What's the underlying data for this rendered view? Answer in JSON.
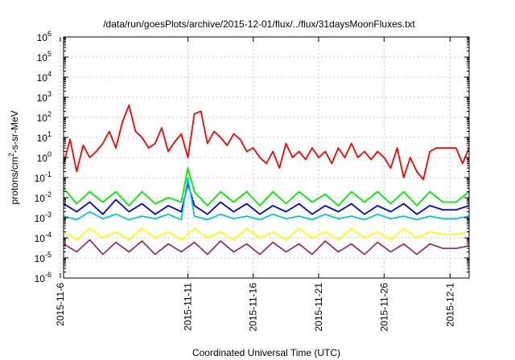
{
  "chart_data": {
    "type": "line",
    "title": "/data/run/goesPlots/archive/2015-12-01/flux/../flux/31daysMoonFluxes.txt",
    "xlabel": "Coordinated Universal Time (UTC)",
    "ylabel": "protons/cm2-s-sr-MeV",
    "y_scale": "log",
    "ylim": [
      1e-06,
      1000000.0
    ],
    "xlim": [
      "2015-11-01T12:00",
      "2015-12-02T12:00"
    ],
    "grid": true,
    "y_ticks": [
      {
        "value": 1e-06,
        "base": "10",
        "exp": "-6"
      },
      {
        "value": 1e-05,
        "base": "10",
        "exp": "-5"
      },
      {
        "value": 0.0001,
        "base": "10",
        "exp": "-4"
      },
      {
        "value": 0.001,
        "base": "10",
        "exp": "-3"
      },
      {
        "value": 0.01,
        "base": "10",
        "exp": "-2"
      },
      {
        "value": 0.1,
        "base": "10",
        "exp": "-1"
      },
      {
        "value": 1,
        "base": "10",
        "exp": "0"
      },
      {
        "value": 10,
        "base": "10",
        "exp": "1"
      },
      {
        "value": 100,
        "base": "10",
        "exp": "2"
      },
      {
        "value": 1000,
        "base": "10",
        "exp": "3"
      },
      {
        "value": 10000,
        "base": "10",
        "exp": "4"
      },
      {
        "value": 100000,
        "base": "10",
        "exp": "5"
      },
      {
        "value": 1000000,
        "base": "10",
        "exp": "6"
      }
    ],
    "x_ticks": [
      "2015-11-6",
      "2015-11-11",
      "2015-11-16",
      "2015-11-21",
      "2015-11-26",
      "2015-12-1"
    ],
    "series": [
      {
        "color": "#ff0000",
        "x": [
          "2015-11-01T12:00",
          "2015-11-02T00:00",
          "2015-11-02T12:00",
          "2015-11-03T00:00",
          "2015-11-03T12:00",
          "2015-11-04T00:00",
          "2015-11-04T12:00",
          "2015-11-05T00:00",
          "2015-11-05T12:00",
          "2015-11-06T00:00",
          "2015-11-06T12:00",
          "2015-11-07T00:00",
          "2015-11-07T12:00",
          "2015-11-08T00:00",
          "2015-11-08T12:00",
          "2015-11-09T00:00",
          "2015-11-09T12:00",
          "2015-11-10T00:00",
          "2015-11-10T12:00",
          "2015-11-11T00:00",
          "2015-11-11T12:00",
          "2015-11-12T00:00",
          "2015-11-12T12:00",
          "2015-11-13T00:00",
          "2015-11-13T12:00",
          "2015-11-14T00:00",
          "2015-11-14T12:00",
          "2015-11-15T00:00",
          "2015-11-15T12:00",
          "2015-11-16T00:00",
          "2015-11-16T12:00",
          "2015-11-17T00:00",
          "2015-11-17T12:00",
          "2015-11-18T00:00",
          "2015-11-18T12:00",
          "2015-11-19T00:00",
          "2015-11-19T12:00",
          "2015-11-20T00:00",
          "2015-11-20T12:00",
          "2015-11-21T00:00",
          "2015-11-21T12:00",
          "2015-11-22T00:00",
          "2015-11-22T12:00",
          "2015-11-23T00:00",
          "2015-11-23T12:00",
          "2015-11-24T00:00",
          "2015-11-24T12:00",
          "2015-11-25T00:00",
          "2015-11-25T12:00",
          "2015-11-26T00:00",
          "2015-11-26T12:00",
          "2015-11-27T00:00",
          "2015-11-27T12:00",
          "2015-11-28T00:00",
          "2015-11-28T12:00",
          "2015-11-29T00:00",
          "2015-11-29T12:00",
          "2015-11-30T00:00",
          "2015-11-30T12:00",
          "2015-12-01T00:00",
          "2015-12-01T12:00",
          "2015-12-02T00:00",
          "2015-12-02T12:00"
        ],
        "values": [
          0.5,
          8,
          0.2,
          4,
          1,
          2,
          5,
          20,
          3,
          60,
          400,
          20,
          10,
          3,
          5,
          30,
          2,
          6,
          15,
          1,
          150,
          200,
          5,
          20,
          10,
          4,
          15,
          8,
          2,
          3,
          1,
          0.5,
          2,
          0.3,
          5,
          1,
          2,
          0.8,
          3,
          1,
          2,
          0.5,
          3,
          1,
          5,
          1,
          2,
          0.8,
          2,
          1,
          0.3,
          3,
          0.1,
          1,
          0.2,
          0.08,
          2,
          3,
          3,
          3,
          3,
          0.5,
          3
        ]
      },
      {
        "color": "#00ee00",
        "x": [
          "2015-11-01T12:00",
          "2015-11-02T12:00",
          "2015-11-03T12:00",
          "2015-11-04T12:00",
          "2015-11-05T12:00",
          "2015-11-06T12:00",
          "2015-11-07T12:00",
          "2015-11-08T12:00",
          "2015-11-09T12:00",
          "2015-11-10T12:00",
          "2015-11-11T00:00",
          "2015-11-11T12:00",
          "2015-11-12T12:00",
          "2015-11-13T12:00",
          "2015-11-14T12:00",
          "2015-11-15T12:00",
          "2015-11-16T12:00",
          "2015-11-17T12:00",
          "2015-11-18T12:00",
          "2015-11-19T12:00",
          "2015-11-20T12:00",
          "2015-11-21T12:00",
          "2015-11-22T12:00",
          "2015-11-23T12:00",
          "2015-11-24T12:00",
          "2015-11-25T12:00",
          "2015-11-26T12:00",
          "2015-11-27T12:00",
          "2015-11-28T12:00",
          "2015-11-29T12:00",
          "2015-11-30T12:00",
          "2015-12-01T12:00",
          "2015-12-02T12:00"
        ],
        "values": [
          0.03,
          0.005,
          0.02,
          0.006,
          0.02,
          0.004,
          0.02,
          0.005,
          0.01,
          0.006,
          0.3,
          0.02,
          0.004,
          0.02,
          0.006,
          0.02,
          0.004,
          0.02,
          0.005,
          0.02,
          0.006,
          0.015,
          0.004,
          0.02,
          0.006,
          0.02,
          0.005,
          0.02,
          0.004,
          0.02,
          0.006,
          0.006,
          0.02
        ]
      },
      {
        "color": "#0000ff",
        "x": [
          "2015-11-01T12:00",
          "2015-11-02T12:00",
          "2015-11-03T12:00",
          "2015-11-04T12:00",
          "2015-11-05T12:00",
          "2015-11-06T12:00",
          "2015-11-07T12:00",
          "2015-11-08T12:00",
          "2015-11-09T12:00",
          "2015-11-10T12:00",
          "2015-11-11T00:00",
          "2015-11-11T12:00",
          "2015-11-12T12:00",
          "2015-11-13T12:00",
          "2015-11-14T12:00",
          "2015-11-15T12:00",
          "2015-11-16T12:00",
          "2015-11-17T12:00",
          "2015-11-18T12:00",
          "2015-11-19T12:00",
          "2015-11-20T12:00",
          "2015-11-21T12:00",
          "2015-11-22T12:00",
          "2015-11-23T12:00",
          "2015-11-24T12:00",
          "2015-11-25T12:00",
          "2015-11-26T12:00",
          "2015-11-27T12:00",
          "2015-11-28T12:00",
          "2015-11-29T12:00",
          "2015-11-30T12:00",
          "2015-12-01T12:00",
          "2015-12-02T12:00"
        ],
        "values": [
          0.005,
          0.002,
          0.006,
          0.0015,
          0.008,
          0.002,
          0.005,
          0.0015,
          0.004,
          0.002,
          0.05,
          0.004,
          0.0015,
          0.006,
          0.002,
          0.005,
          0.0015,
          0.004,
          0.002,
          0.005,
          0.0015,
          0.004,
          0.002,
          0.005,
          0.0015,
          0.004,
          0.002,
          0.005,
          0.0015,
          0.004,
          0.0025,
          0.0025,
          0.004
        ]
      },
      {
        "color": "#00cccc",
        "x": [
          "2015-11-01T12:00",
          "2015-11-02T12:00",
          "2015-11-03T12:00",
          "2015-11-04T12:00",
          "2015-11-05T12:00",
          "2015-11-06T12:00",
          "2015-11-07T12:00",
          "2015-11-08T12:00",
          "2015-11-09T12:00",
          "2015-11-10T12:00",
          "2015-11-11T00:00",
          "2015-11-11T12:00",
          "2015-11-12T12:00",
          "2015-11-13T12:00",
          "2015-11-14T12:00",
          "2015-11-15T12:00",
          "2015-11-16T12:00",
          "2015-11-17T12:00",
          "2015-11-18T12:00",
          "2015-11-19T12:00",
          "2015-11-20T12:00",
          "2015-11-21T12:00",
          "2015-11-22T12:00",
          "2015-11-23T12:00",
          "2015-11-24T12:00",
          "2015-11-25T12:00",
          "2015-11-26T12:00",
          "2015-11-27T12:00",
          "2015-11-28T12:00",
          "2015-11-29T12:00",
          "2015-11-30T12:00",
          "2015-12-01T12:00",
          "2015-12-02T12:00"
        ],
        "values": [
          0.0012,
          0.0008,
          0.002,
          0.0009,
          0.0015,
          0.0008,
          0.0012,
          0.0009,
          0.0015,
          0.0008,
          0.1,
          0.0012,
          0.0008,
          0.0015,
          0.0009,
          0.0012,
          0.0008,
          0.0015,
          0.0009,
          0.0012,
          0.0008,
          0.0015,
          0.0009,
          0.0012,
          0.0008,
          0.0015,
          0.0009,
          0.0012,
          0.0008,
          0.0012,
          0.0009,
          0.0009,
          0.0012
        ]
      },
      {
        "color": "#ffff00",
        "x": [
          "2015-11-01T12:00",
          "2015-11-02T12:00",
          "2015-11-03T12:00",
          "2015-11-04T12:00",
          "2015-11-05T12:00",
          "2015-11-06T12:00",
          "2015-11-07T12:00",
          "2015-11-08T12:00",
          "2015-11-09T12:00",
          "2015-11-10T12:00",
          "2015-11-11T12:00",
          "2015-11-12T12:00",
          "2015-11-13T12:00",
          "2015-11-14T12:00",
          "2015-11-15T12:00",
          "2015-11-16T12:00",
          "2015-11-17T12:00",
          "2015-11-18T12:00",
          "2015-11-19T12:00",
          "2015-11-20T12:00",
          "2015-11-21T12:00",
          "2015-11-22T12:00",
          "2015-11-23T12:00",
          "2015-11-24T12:00",
          "2015-11-25T12:00",
          "2015-11-26T12:00",
          "2015-11-27T12:00",
          "2015-11-28T12:00",
          "2015-11-29T12:00",
          "2015-11-30T12:00",
          "2015-12-01T12:00",
          "2015-12-02T12:00"
        ],
        "values": [
          0.0002,
          8e-05,
          0.0003,
          0.0001,
          0.0002,
          8e-05,
          0.0003,
          0.0001,
          0.0002,
          8e-05,
          0.0003,
          0.0001,
          0.0002,
          8e-05,
          0.0003,
          0.0001,
          0.0002,
          8e-05,
          0.0003,
          0.0001,
          0.0002,
          8e-05,
          0.0003,
          0.0001,
          0.0002,
          8e-05,
          0.0003,
          0.0001,
          0.0002,
          0.00015,
          0.00015,
          0.0002
        ]
      },
      {
        "color": "#993366",
        "x": [
          "2015-11-01T12:00",
          "2015-11-02T12:00",
          "2015-11-03T12:00",
          "2015-11-04T12:00",
          "2015-11-05T12:00",
          "2015-11-06T12:00",
          "2015-11-07T12:00",
          "2015-11-08T12:00",
          "2015-11-09T12:00",
          "2015-11-10T12:00",
          "2015-11-11T12:00",
          "2015-11-12T12:00",
          "2015-11-13T12:00",
          "2015-11-14T12:00",
          "2015-11-15T12:00",
          "2015-11-16T12:00",
          "2015-11-17T12:00",
          "2015-11-18T12:00",
          "2015-11-19T12:00",
          "2015-11-20T12:00",
          "2015-11-21T12:00",
          "2015-11-22T12:00",
          "2015-11-23T12:00",
          "2015-11-24T12:00",
          "2015-11-25T12:00",
          "2015-11-26T12:00",
          "2015-11-27T12:00",
          "2015-11-28T12:00",
          "2015-11-29T12:00",
          "2015-11-30T12:00",
          "2015-12-01T12:00",
          "2015-12-02T12:00"
        ],
        "values": [
          5e-05,
          2e-05,
          8e-05,
          1.5e-05,
          6e-05,
          2e-05,
          7e-05,
          1.5e-05,
          5e-05,
          2e-05,
          6e-05,
          1.5e-05,
          7e-05,
          2e-05,
          5e-05,
          1.5e-05,
          6e-05,
          2e-05,
          5e-05,
          1.5e-05,
          7e-05,
          2e-05,
          5e-05,
          1.5e-05,
          6e-05,
          2e-05,
          5e-05,
          1.5e-05,
          5e-05,
          3e-05,
          3e-05,
          4e-05
        ]
      }
    ]
  }
}
